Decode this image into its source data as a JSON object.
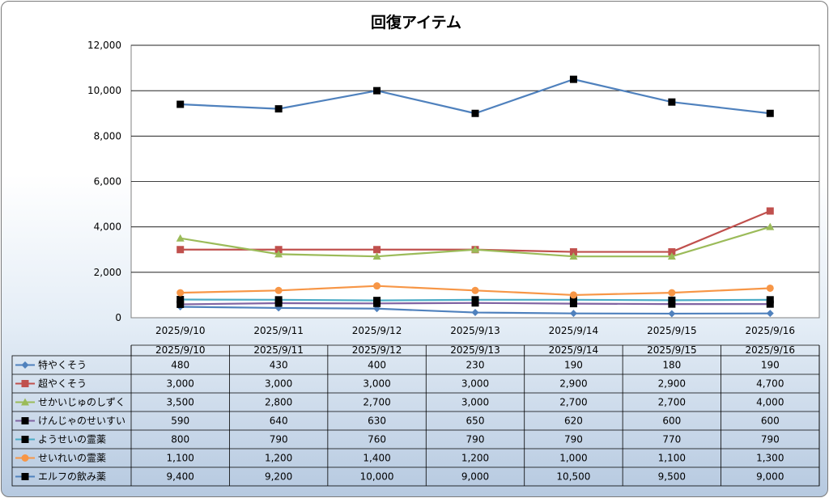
{
  "chart_data": {
    "type": "line",
    "title": "回復アイテム",
    "ylim": [
      0,
      12000
    ],
    "y_ticks": [
      "0",
      "2,000",
      "4,000",
      "6,000",
      "8,000",
      "10,000",
      "12,000"
    ],
    "y_tick_values": [
      0,
      2000,
      4000,
      6000,
      8000,
      10000,
      12000
    ],
    "grid": true,
    "legend": "data-table",
    "categories": [
      "2025/9/10",
      "2025/9/11",
      "2025/9/12",
      "2025/9/13",
      "2025/9/14",
      "2025/9/15",
      "2025/9/16"
    ],
    "series": [
      {
        "name": "特やくそう",
        "color": "#4f81bd",
        "marker": "diamond",
        "values": [
          480,
          430,
          400,
          230,
          190,
          180,
          190
        ],
        "labels": [
          "480",
          "430",
          "400",
          "230",
          "190",
          "180",
          "190"
        ]
      },
      {
        "name": "超やくそう",
        "color": "#c0504d",
        "marker": "square",
        "values": [
          3000,
          3000,
          3000,
          3000,
          2900,
          2900,
          4700
        ],
        "labels": [
          "3,000",
          "3,000",
          "3,000",
          "3,000",
          "2,900",
          "2,900",
          "4,700"
        ]
      },
      {
        "name": "せかいじゅのしずく",
        "color": "#9bbb59",
        "marker": "triangle",
        "values": [
          3500,
          2800,
          2700,
          3000,
          2700,
          2700,
          4000
        ],
        "labels": [
          "3,500",
          "2,800",
          "2,700",
          "3,000",
          "2,700",
          "2,700",
          "4,000"
        ]
      },
      {
        "name": "けんじゃのせいすい",
        "color": "#8064a2",
        "marker": "square-black",
        "values": [
          590,
          640,
          630,
          650,
          620,
          600,
          600
        ],
        "labels": [
          "590",
          "640",
          "630",
          "650",
          "620",
          "600",
          "600"
        ]
      },
      {
        "name": "ようせいの霊薬",
        "color": "#4bacc6",
        "marker": "square-black",
        "values": [
          800,
          790,
          760,
          790,
          790,
          770,
          790
        ],
        "labels": [
          "800",
          "790",
          "760",
          "790",
          "790",
          "770",
          "790"
        ]
      },
      {
        "name": "せいれいの霊薬",
        "color": "#f79646",
        "marker": "circle",
        "values": [
          1100,
          1200,
          1400,
          1200,
          1000,
          1100,
          1300
        ],
        "labels": [
          "1,100",
          "1,200",
          "1,400",
          "1,200",
          "1,000",
          "1,100",
          "1,300"
        ]
      },
      {
        "name": "エルフの飲み薬",
        "color": "#4f81bd",
        "marker": "square-black",
        "values": [
          9400,
          9200,
          10000,
          9000,
          10500,
          9500,
          9000
        ],
        "labels": [
          "9,400",
          "9,200",
          "10,000",
          "9,000",
          "10,500",
          "9,500",
          "9,000"
        ]
      }
    ]
  }
}
